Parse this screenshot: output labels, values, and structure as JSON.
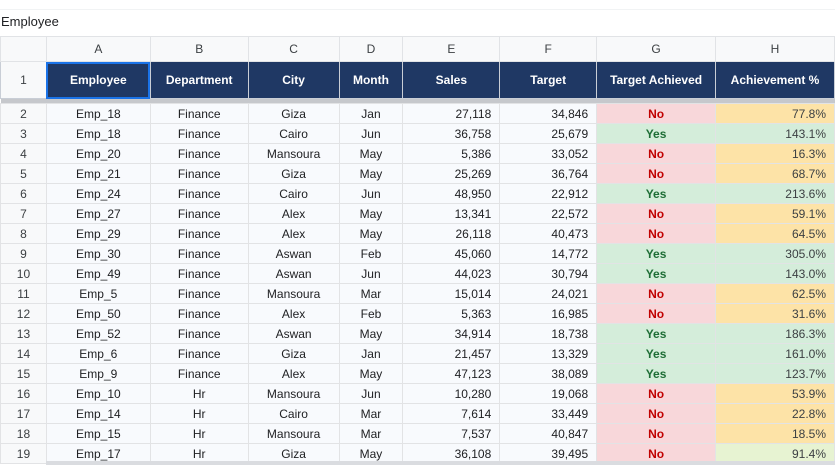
{
  "formula_bar": {
    "cell_value": "Employee"
  },
  "column_letters": [
    "A",
    "B",
    "C",
    "D",
    "E",
    "F",
    "G",
    "H"
  ],
  "header_row_number": "1",
  "headers": [
    "Employee",
    "Department",
    "City",
    "Month",
    "Sales",
    "Target",
    "Target Achieved",
    "Achievement %"
  ],
  "rows": [
    {
      "n": "2",
      "emp": "Emp_18",
      "dept": "Finance",
      "city": "Giza",
      "month": "Jan",
      "sales": "27,118",
      "target": "34,846",
      "achieved": "No",
      "pct": "77.8%"
    },
    {
      "n": "3",
      "emp": "Emp_18",
      "dept": "Finance",
      "city": "Cairo",
      "month": "Jun",
      "sales": "36,758",
      "target": "25,679",
      "achieved": "Yes",
      "pct": "143.1%"
    },
    {
      "n": "4",
      "emp": "Emp_20",
      "dept": "Finance",
      "city": "Mansoura",
      "month": "May",
      "sales": "5,386",
      "target": "33,052",
      "achieved": "No",
      "pct": "16.3%"
    },
    {
      "n": "5",
      "emp": "Emp_21",
      "dept": "Finance",
      "city": "Giza",
      "month": "May",
      "sales": "25,269",
      "target": "36,764",
      "achieved": "No",
      "pct": "68.7%"
    },
    {
      "n": "6",
      "emp": "Emp_24",
      "dept": "Finance",
      "city": "Cairo",
      "month": "Jun",
      "sales": "48,950",
      "target": "22,912",
      "achieved": "Yes",
      "pct": "213.6%"
    },
    {
      "n": "7",
      "emp": "Emp_27",
      "dept": "Finance",
      "city": "Alex",
      "month": "May",
      "sales": "13,341",
      "target": "22,572",
      "achieved": "No",
      "pct": "59.1%"
    },
    {
      "n": "8",
      "emp": "Emp_29",
      "dept": "Finance",
      "city": "Alex",
      "month": "May",
      "sales": "26,118",
      "target": "40,473",
      "achieved": "No",
      "pct": "64.5%"
    },
    {
      "n": "9",
      "emp": "Emp_30",
      "dept": "Finance",
      "city": "Aswan",
      "month": "Feb",
      "sales": "45,060",
      "target": "14,772",
      "achieved": "Yes",
      "pct": "305.0%"
    },
    {
      "n": "10",
      "emp": "Emp_49",
      "dept": "Finance",
      "city": "Aswan",
      "month": "Jun",
      "sales": "44,023",
      "target": "30,794",
      "achieved": "Yes",
      "pct": "143.0%"
    },
    {
      "n": "11",
      "emp": "Emp_5",
      "dept": "Finance",
      "city": "Mansoura",
      "month": "Mar",
      "sales": "15,014",
      "target": "24,021",
      "achieved": "No",
      "pct": "62.5%"
    },
    {
      "n": "12",
      "emp": "Emp_50",
      "dept": "Finance",
      "city": "Alex",
      "month": "Feb",
      "sales": "5,363",
      "target": "16,985",
      "achieved": "No",
      "pct": "31.6%"
    },
    {
      "n": "13",
      "emp": "Emp_52",
      "dept": "Finance",
      "city": "Aswan",
      "month": "May",
      "sales": "34,914",
      "target": "18,738",
      "achieved": "Yes",
      "pct": "186.3%"
    },
    {
      "n": "14",
      "emp": "Emp_6",
      "dept": "Finance",
      "city": "Giza",
      "month": "Jan",
      "sales": "21,457",
      "target": "13,329",
      "achieved": "Yes",
      "pct": "161.0%"
    },
    {
      "n": "15",
      "emp": "Emp_9",
      "dept": "Finance",
      "city": "Alex",
      "month": "May",
      "sales": "47,123",
      "target": "38,089",
      "achieved": "Yes",
      "pct": "123.7%"
    },
    {
      "n": "16",
      "emp": "Emp_10",
      "dept": "Hr",
      "city": "Mansoura",
      "month": "Jun",
      "sales": "10,280",
      "target": "19,068",
      "achieved": "No",
      "pct": "53.9%"
    },
    {
      "n": "17",
      "emp": "Emp_14",
      "dept": "Hr",
      "city": "Cairo",
      "month": "Mar",
      "sales": "7,614",
      "target": "33,449",
      "achieved": "No",
      "pct": "22.8%"
    },
    {
      "n": "18",
      "emp": "Emp_15",
      "dept": "Hr",
      "city": "Mansoura",
      "month": "Mar",
      "sales": "7,537",
      "target": "40,847",
      "achieved": "No",
      "pct": "18.5%"
    },
    {
      "n": "19",
      "emp": "Emp_17",
      "dept": "Hr",
      "city": "Giza",
      "month": "May",
      "sales": "36,108",
      "target": "39,495",
      "achieved": "No",
      "pct": "91.4%"
    }
  ],
  "colors": {
    "header_bg": "#1f3864",
    "yes_bg": "#d4edda",
    "no_bg": "#f8d7da",
    "pct_low_bg": "#fde3a7",
    "pct_high_bg": "#d4edda",
    "selection": "#1a73e8"
  }
}
